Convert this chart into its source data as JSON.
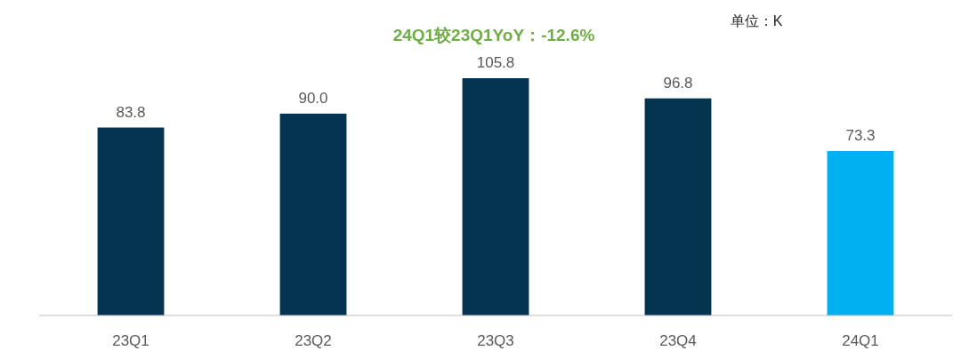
{
  "chart_data": {
    "type": "bar",
    "title": "24Q1较23Q1YoY：-12.6%",
    "annotations": [
      "单位：K"
    ],
    "categories": [
      "23Q1",
      "23Q2",
      "23Q3",
      "23Q4",
      "24Q1"
    ],
    "values": [
      83.8,
      90.0,
      105.8,
      96.8,
      73.3
    ],
    "colors": [
      "#04344f",
      "#04344f",
      "#04344f",
      "#04344f",
      "#00b0f0"
    ],
    "value_labels": [
      "83.8",
      "90.0",
      "105.8",
      "96.8",
      "73.3"
    ]
  }
}
